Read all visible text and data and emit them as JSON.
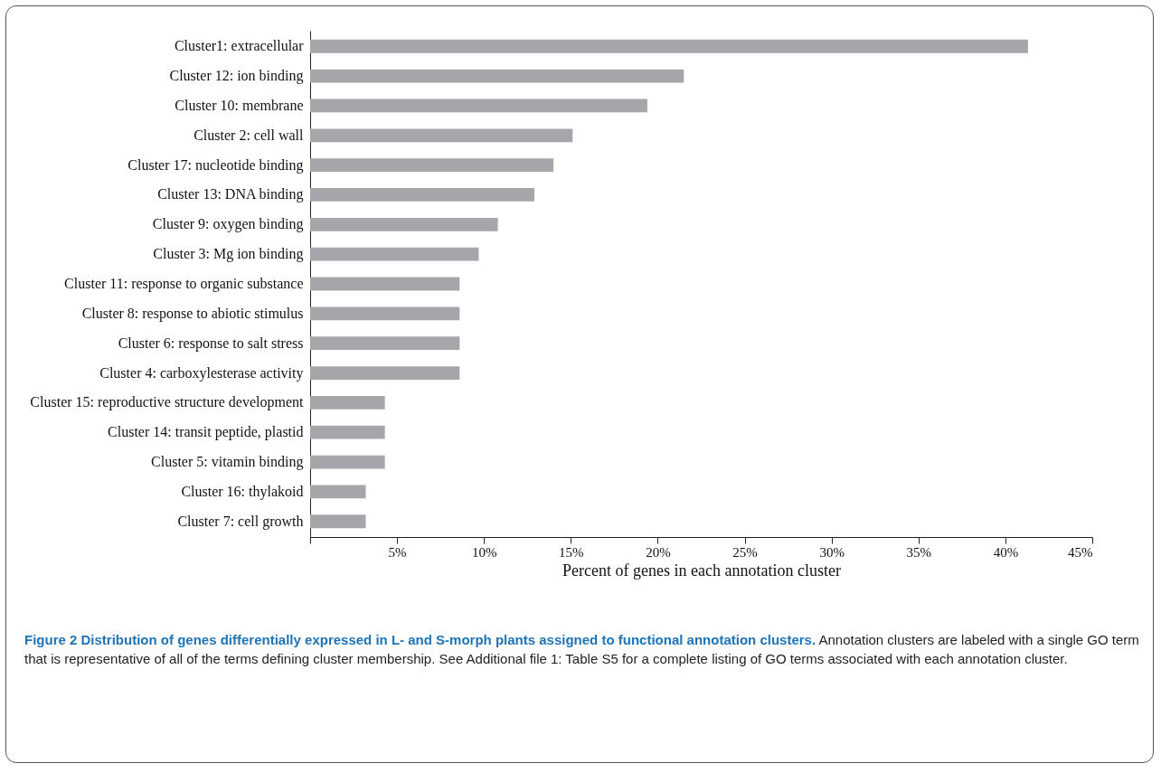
{
  "chart_data": {
    "type": "bar",
    "orientation": "horizontal",
    "title": "Figure 2 Distribution of genes differentially expressed in L- and S-morph plants assigned to functional annotation clusters.",
    "annotations": [
      "Annotation clusters are labeled with a single GO term that is representative of all of the terms defining cluster membership. See Additional file 1: Table S5 for a complete listing of GO terms associated with each annotation cluster."
    ],
    "xlabel": "Percent of genes in each annotation cluster",
    "categories": [
      "Cluster1: extracellular",
      "Cluster 12: ion binding",
      "Cluster 10: membrane",
      "Cluster 2: cell wall",
      "Cluster 17: nucleotide binding",
      "Cluster 13: DNA binding",
      "Cluster 9: oxygen binding",
      "Cluster 3: Mg ion binding",
      "Cluster 11: response to organic substance",
      "Cluster 8: response to abiotic stimulus",
      "Cluster 6: response to salt stress",
      "Cluster 4: carboxylesterase activity",
      "Cluster 15: reproductive structure development",
      "Cluster 14: transit peptide, plastid",
      "Cluster 5: vitamin binding",
      "Cluster 16: thylakoid",
      "Cluster 7: cell growth"
    ],
    "values": [
      41.3,
      21.5,
      19.4,
      15.1,
      14.0,
      12.9,
      10.8,
      9.7,
      8.6,
      8.6,
      8.6,
      8.6,
      4.3,
      4.3,
      4.3,
      3.2,
      3.2
    ],
    "color": "#a5a6a9",
    "xlim": [
      0,
      45
    ],
    "xticks": [
      {
        "value": 0,
        "label": null
      },
      {
        "value": 5,
        "label": "5%"
      },
      {
        "value": 10,
        "label": "10%"
      },
      {
        "value": 15,
        "label": "15%"
      },
      {
        "value": 20,
        "label": "20%"
      },
      {
        "value": 25,
        "label": "25%"
      },
      {
        "value": 30,
        "label": "30%"
      },
      {
        "value": 35,
        "label": "35%"
      },
      {
        "value": 40,
        "label": "40%"
      },
      {
        "value": 45,
        "label": "45%"
      }
    ],
    "grid": false
  }
}
